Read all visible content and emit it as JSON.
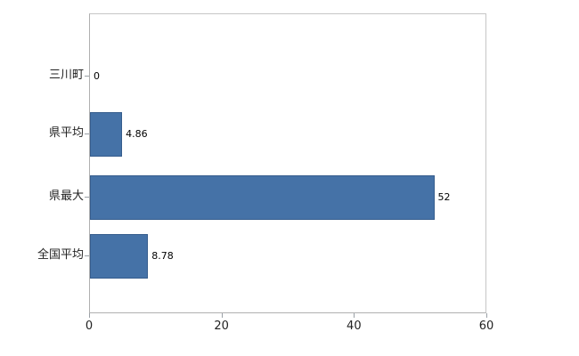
{
  "chart_data": {
    "type": "bar",
    "orientation": "horizontal",
    "title": "",
    "xlabel": "",
    "ylabel": "",
    "categories": [
      "三川町",
      "県平均",
      "県最大",
      "全国平均"
    ],
    "values": [
      0,
      4.86,
      52,
      8.78
    ],
    "value_labels": [
      "0",
      "4.86",
      "52",
      "8.78"
    ],
    "xlim": [
      0,
      60
    ],
    "x_ticks": [
      0,
      20,
      40,
      60
    ],
    "bar_color": "#4572a7",
    "bar_border_color": "#365d8d",
    "axis_color": "#b0b0b0",
    "grid": false,
    "legend": false,
    "background": "#ffffff"
  }
}
